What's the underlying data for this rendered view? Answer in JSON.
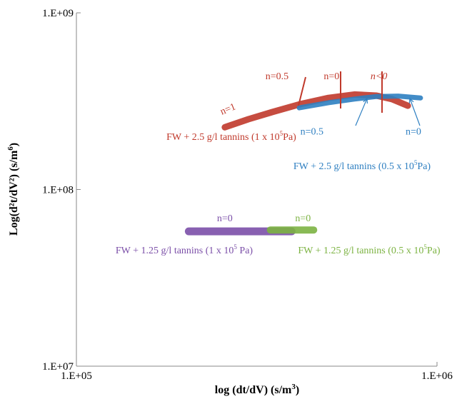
{
  "chart_data": {
    "type": "line",
    "title": "",
    "xlabel": "log (dt/dV) (s/m",
    "xlabel_sup": "3",
    "xlabel_end": ")",
    "ylabel": "Log(d²t/dV²) (s/m",
    "ylabel_sup": "6",
    "ylabel_end": ")",
    "x_scale": "log",
    "y_scale": "log",
    "xlim": [
      100000,
      1000000
    ],
    "ylim": [
      10000000,
      1000000000
    ],
    "x_ticks": [
      {
        "value": 100000,
        "label": "1.E+05"
      },
      {
        "value": 1000000,
        "label": "1.E+06"
      }
    ],
    "y_ticks": [
      {
        "value": 10000000,
        "label": "1.E+07"
      },
      {
        "value": 100000000,
        "label": "1.E+08"
      },
      {
        "value": 1000000000,
        "label": "1.E+09"
      }
    ],
    "grid": false,
    "series": [
      {
        "color": "#c0392b",
        "x": [
          258000,
          300000,
          350000,
          420000,
          500000,
          590000,
          680000,
          750000,
          830000
        ],
        "y": [
          225000000,
          250000000,
          275000000,
          305000000,
          330000000,
          345000000,
          340000000,
          325000000,
          298000000
        ]
      },
      {
        "color": "#2e7fc1",
        "x": [
          415000,
          500000,
          590000,
          680000,
          780000,
          900000
        ],
        "y": [
          290000000,
          310000000,
          325000000,
          336000000,
          338000000,
          330000000
        ]
      },
      {
        "color": "#7b4fa8",
        "x": [
          205000,
          250000,
          300000,
          350000,
          395000
        ],
        "y": [
          58000000,
          58000000,
          58000000,
          58000000,
          58000000
        ]
      },
      {
        "color": "#7cb342",
        "x": [
          345000,
          380000,
          420000,
          455000
        ],
        "y": [
          59000000,
          59000000,
          59000000,
          59000000
        ]
      }
    ],
    "annotations": [
      {
        "text": "n=1",
        "color": "#c0392b",
        "x": 265000,
        "y": 275000000
      },
      {
        "text": "n=0.5",
        "color": "#c0392b",
        "x": 360000,
        "y": 420000000
      },
      {
        "text": "n=0",
        "color": "#c0392b",
        "x": 510000,
        "y": 420000000
      },
      {
        "text": "n<0",
        "color": "#c0392b",
        "x": 690000,
        "y": 420000000
      },
      {
        "text": "n=0.5",
        "color": "#2e7fc1",
        "x": 450000,
        "y": 205000000
      },
      {
        "text": "n=0",
        "color": "#2e7fc1",
        "x": 860000,
        "y": 205000000
      },
      {
        "text": "n=0",
        "color": "#7b4fa8",
        "x": 258000,
        "y": 66000000
      },
      {
        "text": "n=0",
        "color": "#7cb342",
        "x": 425000,
        "y": 66000000
      }
    ],
    "legend_labels": [
      {
        "pre": "FW + 2.5 g/l tannins (1 x 10",
        "sup": "5",
        "post": "Pa)",
        "color": "#c0392b"
      },
      {
        "pre": "FW + 2.5 g/l tannins (0.5 x 10",
        "sup": "5",
        "post": "Pa)",
        "color": "#2e7fc1"
      },
      {
        "pre": "FW + 1.25 g/l tannins (1 x 10",
        "sup": "5",
        "post": " Pa)",
        "color": "#7b4fa8"
      },
      {
        "pre": "FW + 1.25 g/l tannins (0.5 x 10",
        "sup": "5",
        "post": "Pa)",
        "color": "#7cb342"
      }
    ]
  }
}
